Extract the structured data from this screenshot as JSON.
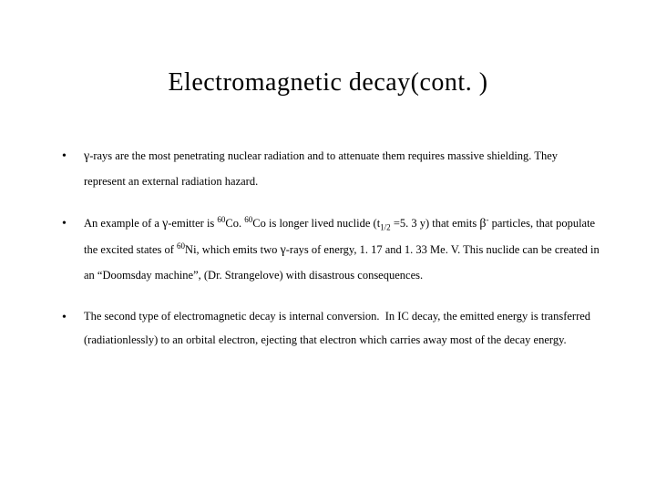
{
  "title": "Electromagnetic decay(cont. )",
  "bullets": [
    {
      "text_html": "<span class=\"greek\">&gamma;</span>-rays are the most penetrating nuclear radiation and to attenuate them requires massive shielding. They represent an external radiation hazard."
    },
    {
      "text_html": "An example of a <span class=\"greek\">&gamma;</span>-emitter is <span class=\"sup\">60</span>Co. <span class=\"sup\">60</span>Co is longer lived nuclide (t<span class=\"sub\">1/2</span> =5. 3 y) that emits <span class=\"greek\">&beta;</span><span class=\"sup\">-</span> particles, that populate the excited states of <span class=\"sup\">60</span>Ni, which emits two <span class=\"greek\">&gamma;</span>-rays of energy, 1. 17 and 1. 33 Me. V. This nuclide can be created in an “Doomsday machine”, (Dr. Strangelove) with disastrous consequences."
    },
    {
      "text_html": "The second type of electromagnetic decay is internal conversion.&nbsp;&nbsp;In IC decay, the emitted energy is transferred (radiationlessly) to an orbital electron, ejecting that electron which carries away most of the decay energy."
    }
  ],
  "style": {
    "background_color": "#ffffff",
    "text_color": "#000000",
    "title_fontsize": 28,
    "body_fontsize": 12.5,
    "font_family": "Georgia, 'Times New Roman', serif",
    "bullet_char": "•",
    "line_height": 2.1
  }
}
